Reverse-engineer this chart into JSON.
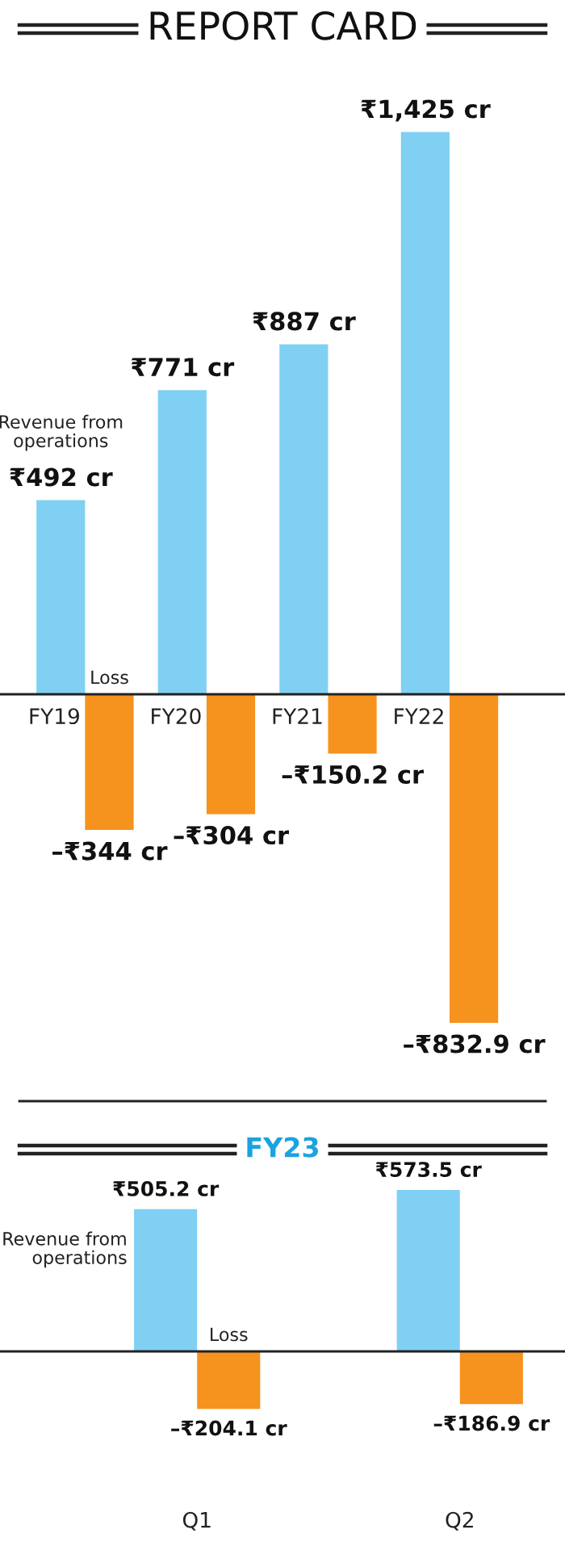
{
  "chart_data": [
    {
      "type": "bar",
      "title": "REPORT CARD",
      "categories": [
        "FY19",
        "FY20",
        "FY21",
        "FY22"
      ],
      "series": [
        {
          "name": "Revenue from operations",
          "color": "#80d0f4",
          "values": [
            492,
            771,
            887,
            1425
          ],
          "value_labels": [
            "₹492 cr",
            "₹771 cr",
            "₹887 cr",
            "₹1,425 cr"
          ]
        },
        {
          "name": "Loss",
          "color": "#f6921e",
          "values": [
            -344,
            -304,
            -150.2,
            -832.9
          ],
          "value_labels": [
            "–₹344 cr",
            "–₹304 cr",
            "–₹150.2 cr",
            "–₹832.9 cr"
          ]
        }
      ]
    },
    {
      "type": "bar",
      "title": "FY23",
      "categories": [
        "Q1",
        "Q2"
      ],
      "series": [
        {
          "name": "Revenue from operations",
          "color": "#80d0f4",
          "values": [
            505.2,
            573.5
          ],
          "value_labels": [
            "₹505.2 cr",
            "₹573.5 cr"
          ]
        },
        {
          "name": "Loss",
          "color": "#f6921e",
          "values": [
            -204.1,
            -186.9
          ],
          "value_labels": [
            "–₹204.1 cr",
            "–₹186.9 cr"
          ]
        }
      ]
    }
  ]
}
